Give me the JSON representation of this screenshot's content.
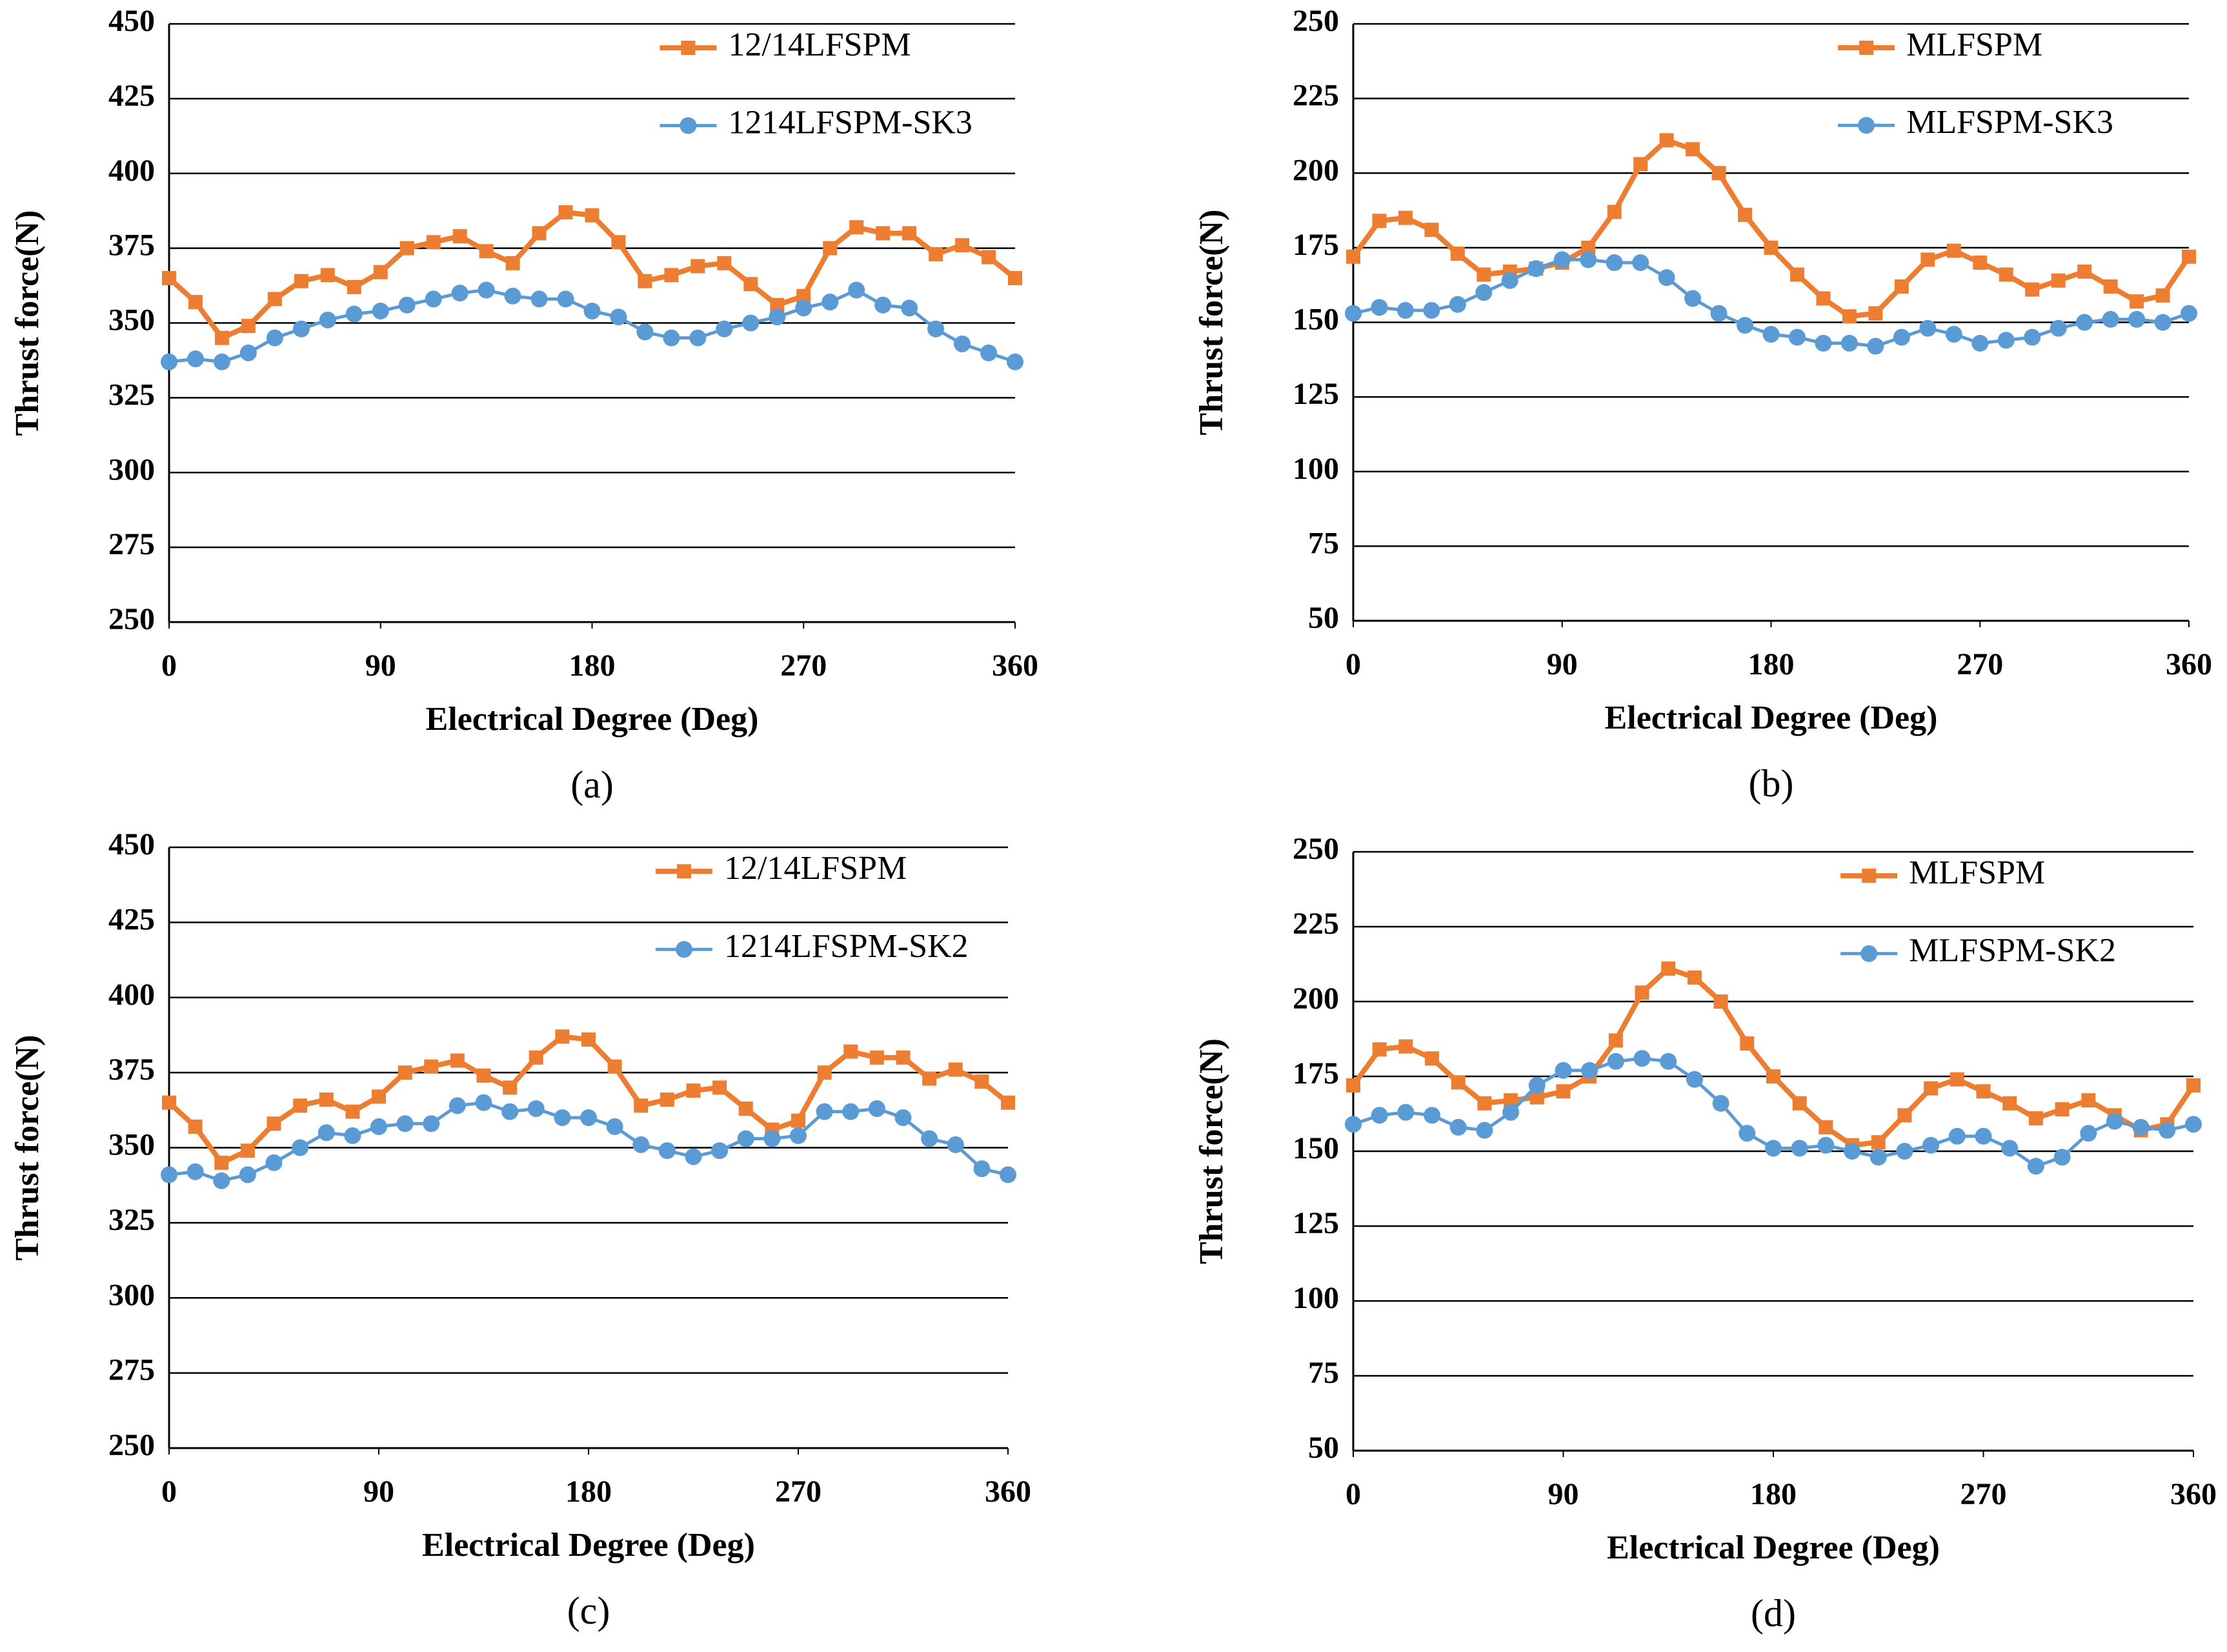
{
  "chart_data": [
    {
      "type": "line",
      "label": "(a)",
      "xlabel": "Electrical Degree (Deg)",
      "ylabel": "Thrust force(N)",
      "x": [
        0,
        11.25,
        22.5,
        33.75,
        45,
        56.25,
        67.5,
        78.75,
        90,
        101.25,
        112.5,
        123.75,
        135,
        146.25,
        157.5,
        168.75,
        180,
        191.25,
        202.5,
        213.75,
        225,
        236.25,
        247.5,
        258.75,
        270,
        281.25,
        292.5,
        303.75,
        315,
        326.25,
        337.5,
        348.75,
        360
      ],
      "xlim": [
        0,
        360
      ],
      "xticks": [
        0,
        90,
        180,
        270,
        360
      ],
      "ylim": [
        250,
        450
      ],
      "yticks": [
        250,
        275,
        300,
        325,
        350,
        375,
        400,
        425,
        450
      ],
      "grid": true,
      "legend": "upper right",
      "series": [
        {
          "name": "12/14LFSPM",
          "color": "#ed7d31",
          "marker": "square",
          "values": [
            365,
            357,
            345,
            349,
            358,
            364,
            366,
            362,
            367,
            375,
            377,
            379,
            374,
            370,
            380,
            387,
            386,
            377,
            364,
            366,
            369,
            370,
            363,
            356,
            359,
            375,
            382,
            380,
            380,
            373,
            376,
            372,
            365
          ]
        },
        {
          "name": "1214LFSPM-SK3",
          "color": "#5b9bd5",
          "marker": "circle",
          "values": [
            337,
            338,
            337,
            340,
            345,
            348,
            351,
            353,
            354,
            356,
            358,
            360,
            361,
            359,
            358,
            358,
            354,
            352,
            347,
            345,
            345,
            348,
            350,
            352,
            355,
            357,
            361,
            356,
            355,
            348,
            343,
            340,
            337
          ]
        }
      ]
    },
    {
      "type": "line",
      "label": "(b)",
      "xlabel": "Electrical Degree (Deg)",
      "ylabel": "Thrust force(N)",
      "x": [
        0,
        11.25,
        22.5,
        33.75,
        45,
        56.25,
        67.5,
        78.75,
        90,
        101.25,
        112.5,
        123.75,
        135,
        146.25,
        157.5,
        168.75,
        180,
        191.25,
        202.5,
        213.75,
        225,
        236.25,
        247.5,
        258.75,
        270,
        281.25,
        292.5,
        303.75,
        315,
        326.25,
        337.5,
        348.75,
        360
      ],
      "xlim": [
        0,
        360
      ],
      "xticks": [
        0,
        90,
        180,
        270,
        360
      ],
      "ylim": [
        50,
        250
      ],
      "yticks": [
        50,
        75,
        100,
        125,
        150,
        175,
        200,
        225,
        250
      ],
      "grid": true,
      "legend": "upper right",
      "series": [
        {
          "name": "MLFSPM",
          "color": "#ed7d31",
          "marker": "square",
          "values": [
            172,
            184,
            185,
            181,
            173,
            166,
            167,
            168,
            170,
            175,
            187,
            203,
            211,
            208,
            200,
            186,
            175,
            166,
            158,
            152,
            153,
            162,
            171,
            174,
            170,
            166,
            161,
            164,
            167,
            162,
            157,
            159,
            172
          ]
        },
        {
          "name": "MLFSPM-SK3",
          "color": "#5b9bd5",
          "marker": "circle",
          "values": [
            153,
            155,
            154,
            154,
            156,
            160,
            164,
            168,
            171,
            171,
            170,
            170,
            165,
            158,
            153,
            149,
            146,
            145,
            143,
            143,
            142,
            145,
            148,
            146,
            143,
            144,
            145,
            148,
            150,
            151,
            151,
            150,
            153
          ]
        }
      ]
    },
    {
      "type": "line",
      "label": "(c)",
      "xlabel": "Electrical Degree (Deg)",
      "ylabel": "Thrust force(N)",
      "x": [
        0,
        11.25,
        22.5,
        33.75,
        45,
        56.25,
        67.5,
        78.75,
        90,
        101.25,
        112.5,
        123.75,
        135,
        146.25,
        157.5,
        168.75,
        180,
        191.25,
        202.5,
        213.75,
        225,
        236.25,
        247.5,
        258.75,
        270,
        281.25,
        292.5,
        303.75,
        315,
        326.25,
        337.5,
        348.75,
        360
      ],
      "xlim": [
        0,
        360
      ],
      "xticks": [
        0,
        90,
        180,
        270,
        360
      ],
      "ylim": [
        250,
        450
      ],
      "yticks": [
        250,
        275,
        300,
        325,
        350,
        375,
        400,
        425,
        450
      ],
      "grid": true,
      "legend": "upper right",
      "series": [
        {
          "name": "12/14LFSPM",
          "color": "#ed7d31",
          "marker": "square",
          "values": [
            365,
            357,
            345,
            349,
            358,
            364,
            366,
            362,
            367,
            375,
            377,
            379,
            374,
            370,
            380,
            387,
            386,
            377,
            364,
            366,
            369,
            370,
            363,
            356,
            359,
            375,
            382,
            380,
            380,
            373,
            376,
            372,
            365
          ]
        },
        {
          "name": "1214LFSPM-SK2",
          "color": "#5b9bd5",
          "marker": "circle",
          "values": [
            341,
            342,
            339,
            341,
            345,
            350,
            355,
            354,
            357,
            358,
            358,
            364,
            365,
            362,
            363,
            360,
            360,
            357,
            351,
            349,
            347,
            349,
            353,
            353,
            354,
            362,
            362,
            363,
            360,
            353,
            351,
            343,
            341
          ]
        }
      ]
    },
    {
      "type": "line",
      "label": "(d)",
      "xlabel": "Electrical Degree (Deg)",
      "ylabel": "Thrust force(N)",
      "x": [
        0,
        11.25,
        22.5,
        33.75,
        45,
        56.25,
        67.5,
        78.75,
        90,
        101.25,
        112.5,
        123.75,
        135,
        146.25,
        157.5,
        168.75,
        180,
        191.25,
        202.5,
        213.75,
        225,
        236.25,
        247.5,
        258.75,
        270,
        281.25,
        292.5,
        303.75,
        315,
        326.25,
        337.5,
        348.75,
        360
      ],
      "xlim": [
        0,
        360
      ],
      "xticks": [
        0,
        90,
        180,
        270,
        360
      ],
      "ylim": [
        50,
        250
      ],
      "yticks": [
        50,
        75,
        100,
        125,
        150,
        175,
        200,
        225,
        250
      ],
      "grid": true,
      "legend": "upper right",
      "series": [
        {
          "name": "MLFSPM",
          "color": "#ed7d31",
          "marker": "square",
          "values": [
            172,
            184,
            185,
            181,
            173,
            166,
            167,
            168,
            170,
            175,
            187,
            203,
            211,
            208,
            200,
            186,
            175,
            166,
            158,
            152,
            153,
            162,
            171,
            174,
            170,
            166,
            161,
            164,
            167,
            162,
            157,
            159,
            172
          ]
        },
        {
          "name": "MLFSPM-SK2",
          "color": "#5b9bd5",
          "marker": "circle",
          "values": [
            159,
            162,
            163,
            162,
            158,
            157,
            163,
            172,
            177,
            177,
            180,
            181,
            180,
            174,
            166,
            156,
            151,
            151,
            152,
            150,
            148,
            150,
            152,
            155,
            155,
            151,
            145,
            148,
            156,
            160,
            158,
            157,
            159
          ]
        }
      ]
    }
  ]
}
